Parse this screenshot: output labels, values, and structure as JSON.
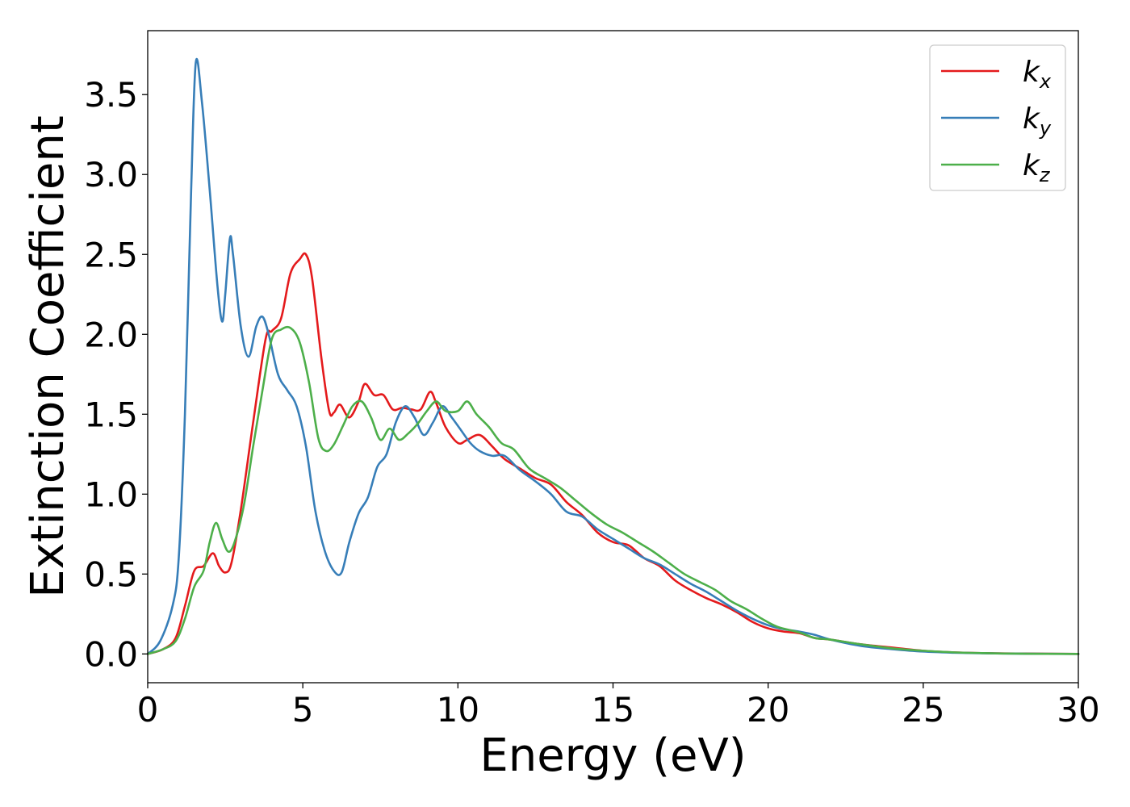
{
  "chart_data": {
    "type": "line",
    "xlabel": "Energy (eV)",
    "ylabel": "Extinction Coefficient",
    "xlim": [
      0,
      30
    ],
    "ylim": [
      -0.18,
      3.9
    ],
    "xticks": [
      0,
      5,
      10,
      15,
      20,
      25,
      30
    ],
    "xtick_labels": [
      "0",
      "5",
      "10",
      "15",
      "20",
      "25",
      "30"
    ],
    "yticks": [
      0.0,
      0.5,
      1.0,
      1.5,
      2.0,
      2.5,
      3.0,
      3.5
    ],
    "ytick_labels": [
      "0.0",
      "0.5",
      "1.0",
      "1.5",
      "2.0",
      "2.5",
      "3.0",
      "3.5"
    ],
    "grid": false,
    "legend_position": "top-right",
    "series": [
      {
        "name": "k_x",
        "label_main": "k",
        "label_sub": "x",
        "color": "#e41a1c",
        "x": [
          0,
          0.5,
          0.9,
          1.2,
          1.5,
          1.8,
          2.1,
          2.3,
          2.5,
          2.7,
          3.0,
          3.4,
          3.8,
          4.0,
          4.3,
          4.6,
          4.9,
          5.1,
          5.3,
          5.6,
          5.85,
          6.0,
          6.2,
          6.5,
          6.8,
          7.0,
          7.3,
          7.6,
          7.9,
          8.2,
          8.5,
          8.8,
          9.1,
          9.3,
          9.6,
          10.0,
          10.3,
          10.7,
          11.1,
          11.5,
          12.0,
          12.5,
          13.0,
          13.5,
          14.0,
          14.5,
          15.0,
          15.5,
          16.0,
          16.5,
          17.0,
          17.5,
          18.0,
          18.5,
          19.0,
          19.5,
          20.0,
          20.5,
          21.0,
          21.5,
          22.0,
          23.0,
          24.0,
          25.0,
          26.0,
          27.0,
          28.0,
          30.0
        ],
        "y": [
          0.0,
          0.03,
          0.1,
          0.3,
          0.52,
          0.55,
          0.63,
          0.55,
          0.51,
          0.57,
          0.9,
          1.45,
          1.97,
          2.02,
          2.1,
          2.38,
          2.47,
          2.5,
          2.35,
          1.85,
          1.52,
          1.51,
          1.56,
          1.48,
          1.58,
          1.69,
          1.62,
          1.62,
          1.53,
          1.54,
          1.53,
          1.53,
          1.64,
          1.57,
          1.42,
          1.32,
          1.34,
          1.37,
          1.3,
          1.22,
          1.16,
          1.1,
          1.06,
          0.95,
          0.87,
          0.76,
          0.7,
          0.68,
          0.6,
          0.55,
          0.46,
          0.4,
          0.35,
          0.31,
          0.26,
          0.2,
          0.16,
          0.14,
          0.13,
          0.1,
          0.09,
          0.06,
          0.04,
          0.02,
          0.01,
          0.005,
          0.003,
          0.0
        ]
      },
      {
        "name": "k_y",
        "label_main": "k",
        "label_sub": "y",
        "color": "#377eb8",
        "x": [
          0,
          0.4,
          0.8,
          1.0,
          1.2,
          1.4,
          1.55,
          1.75,
          2.0,
          2.25,
          2.4,
          2.5,
          2.65,
          2.75,
          3.0,
          3.25,
          3.5,
          3.7,
          3.9,
          4.2,
          4.5,
          4.8,
          5.1,
          5.4,
          5.7,
          6.0,
          6.25,
          6.5,
          6.8,
          7.1,
          7.4,
          7.7,
          8.0,
          8.3,
          8.6,
          8.9,
          9.2,
          9.5,
          9.8,
          10.1,
          10.4,
          10.7,
          11.1,
          11.5,
          12.0,
          12.5,
          13.0,
          13.5,
          14.0,
          14.5,
          15.0,
          15.5,
          16.0,
          16.5,
          17.0,
          17.5,
          18.0,
          18.5,
          19.0,
          19.5,
          20.0,
          20.5,
          21.0,
          21.5,
          22.0,
          23.0,
          24.0,
          25.0,
          26.0,
          27.0,
          28.0,
          30.0
        ],
        "y": [
          0.0,
          0.08,
          0.3,
          0.6,
          1.5,
          2.9,
          3.7,
          3.45,
          2.9,
          2.3,
          2.08,
          2.25,
          2.6,
          2.5,
          2.05,
          1.86,
          2.05,
          2.11,
          2.0,
          1.75,
          1.65,
          1.55,
          1.3,
          0.9,
          0.65,
          0.52,
          0.51,
          0.7,
          0.88,
          0.98,
          1.17,
          1.25,
          1.45,
          1.55,
          1.48,
          1.37,
          1.45,
          1.55,
          1.48,
          1.4,
          1.32,
          1.27,
          1.24,
          1.24,
          1.15,
          1.08,
          1.0,
          0.89,
          0.86,
          0.78,
          0.72,
          0.66,
          0.6,
          0.56,
          0.5,
          0.44,
          0.39,
          0.33,
          0.27,
          0.22,
          0.18,
          0.155,
          0.14,
          0.12,
          0.09,
          0.05,
          0.03,
          0.015,
          0.008,
          0.004,
          0.002,
          0.0
        ]
      },
      {
        "name": "k_z",
        "label_main": "k",
        "label_sub": "z",
        "color": "#4daf4a",
        "x": [
          0,
          0.5,
          0.9,
          1.2,
          1.5,
          1.8,
          2.0,
          2.2,
          2.4,
          2.6,
          2.8,
          3.1,
          3.4,
          3.7,
          4.0,
          4.3,
          4.6,
          4.9,
          5.2,
          5.5,
          5.75,
          6.0,
          6.3,
          6.6,
          6.9,
          7.2,
          7.5,
          7.8,
          8.1,
          8.4,
          8.7,
          9.0,
          9.3,
          9.6,
          10.0,
          10.3,
          10.6,
          11.0,
          11.4,
          11.8,
          12.3,
          12.8,
          13.3,
          13.8,
          14.3,
          14.8,
          15.3,
          15.8,
          16.3,
          16.8,
          17.3,
          17.8,
          18.3,
          18.8,
          19.3,
          19.8,
          20.3,
          21.0,
          21.5,
          22.0,
          23.0,
          24.0,
          25.0,
          26.0,
          27.0,
          28.0,
          30.0
        ],
        "y": [
          0.0,
          0.03,
          0.08,
          0.22,
          0.42,
          0.52,
          0.7,
          0.82,
          0.72,
          0.64,
          0.7,
          0.93,
          1.3,
          1.65,
          1.97,
          2.03,
          2.04,
          1.95,
          1.7,
          1.35,
          1.27,
          1.31,
          1.43,
          1.55,
          1.58,
          1.48,
          1.34,
          1.41,
          1.34,
          1.38,
          1.44,
          1.52,
          1.58,
          1.52,
          1.52,
          1.58,
          1.5,
          1.42,
          1.32,
          1.28,
          1.16,
          1.1,
          1.04,
          0.96,
          0.88,
          0.81,
          0.76,
          0.7,
          0.64,
          0.57,
          0.5,
          0.45,
          0.4,
          0.33,
          0.28,
          0.22,
          0.17,
          0.135,
          0.1,
          0.09,
          0.06,
          0.035,
          0.02,
          0.01,
          0.005,
          0.002,
          0.0
        ]
      }
    ]
  }
}
